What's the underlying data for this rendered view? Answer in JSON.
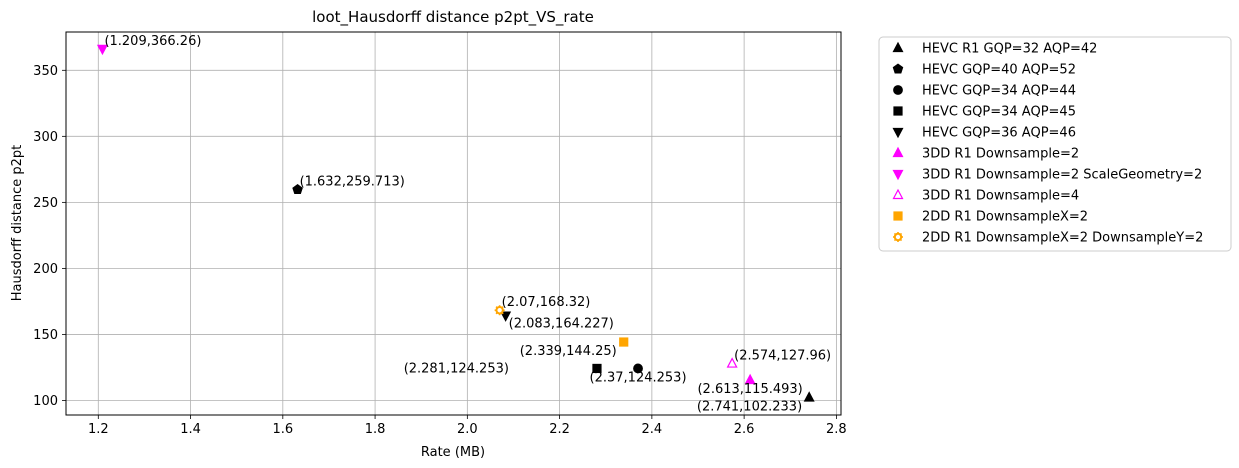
{
  "chart_data": {
    "type": "scatter",
    "title": "loot_Hausdorff distance p2pt_VS_rate",
    "xlabel": "Rate (MB)",
    "ylabel": "Hausdorff distance p2pt",
    "xlim": [
      1.13,
      2.81
    ],
    "ylim": [
      89.0,
      379.0
    ],
    "xticks": [
      1.2,
      1.4,
      1.6,
      1.8,
      2.0,
      2.2,
      2.4,
      2.6,
      2.8
    ],
    "xtick_labels": [
      "1.2",
      "1.4",
      "1.6",
      "1.8",
      "2.0",
      "2.2",
      "2.4",
      "2.6",
      "2.8"
    ],
    "yticks": [
      100,
      150,
      200,
      250,
      300,
      350
    ],
    "ytick_labels": [
      "100",
      "150",
      "200",
      "250",
      "300",
      "350"
    ],
    "grid": true,
    "legend_position": "outside-right",
    "series": [
      {
        "name": "HEVC R1 GQP=32 AQP=42",
        "marker": "triangle-up",
        "color": "#000000",
        "filled": true,
        "x": 2.741,
        "y": 102.233,
        "label": "(2.741,102.233)",
        "label_anchor": "below-left"
      },
      {
        "name": "HEVC GQP=40 AQP=52",
        "marker": "pentagon",
        "color": "#000000",
        "filled": true,
        "x": 1.632,
        "y": 259.713,
        "label": "(1.632,259.713)",
        "label_anchor": "above-right"
      },
      {
        "name": "HEVC GQP=34 AQP=44",
        "marker": "circle",
        "color": "#000000",
        "filled": true,
        "x": 2.37,
        "y": 124.253,
        "label": "(2.37,124.253)",
        "label_anchor": "below"
      },
      {
        "name": "HEVC GQP=34 AQP=45",
        "marker": "square",
        "color": "#000000",
        "filled": true,
        "x": 2.281,
        "y": 124.253,
        "label": "(2.281,124.253)",
        "label_anchor": "far-left"
      },
      {
        "name": "HEVC GQP=36 AQP=46",
        "marker": "triangle-down",
        "color": "#000000",
        "filled": true,
        "x": 2.083,
        "y": 164.227,
        "label": "(2.083,164.227)",
        "label_anchor": "below-right"
      },
      {
        "name": "3DD R1 Downsample=2",
        "marker": "triangle-up",
        "color": "#ff00ff",
        "filled": true,
        "x": 2.613,
        "y": 115.493,
        "label": "(2.613,115.493)",
        "label_anchor": "below"
      },
      {
        "name": "3DD R1 Downsample=2 ScaleGeometry=2",
        "marker": "triangle-down",
        "color": "#ff00ff",
        "filled": true,
        "x": 1.209,
        "y": 366.26,
        "label": "(1.209,366.26)",
        "label_anchor": "above-right"
      },
      {
        "name": "3DD R1 Downsample=4",
        "marker": "triangle-up",
        "color": "#ff00ff",
        "filled": false,
        "x": 2.574,
        "y": 127.96,
        "label": "(2.574,127.96)",
        "label_anchor": "above-right"
      },
      {
        "name": "2DD R1 DownsampleX=2",
        "marker": "square",
        "color": "#ffa500",
        "filled": true,
        "x": 2.339,
        "y": 144.25,
        "label": "(2.339,144.25)",
        "label_anchor": "below-left"
      },
      {
        "name": "2DD R1 DownsampleX=2 DownsampleY=2",
        "marker": "gear",
        "color": "#ffa500",
        "filled": false,
        "x": 2.07,
        "y": 168.32,
        "label": "(2.07,168.32)",
        "label_anchor": "above-right"
      }
    ]
  }
}
